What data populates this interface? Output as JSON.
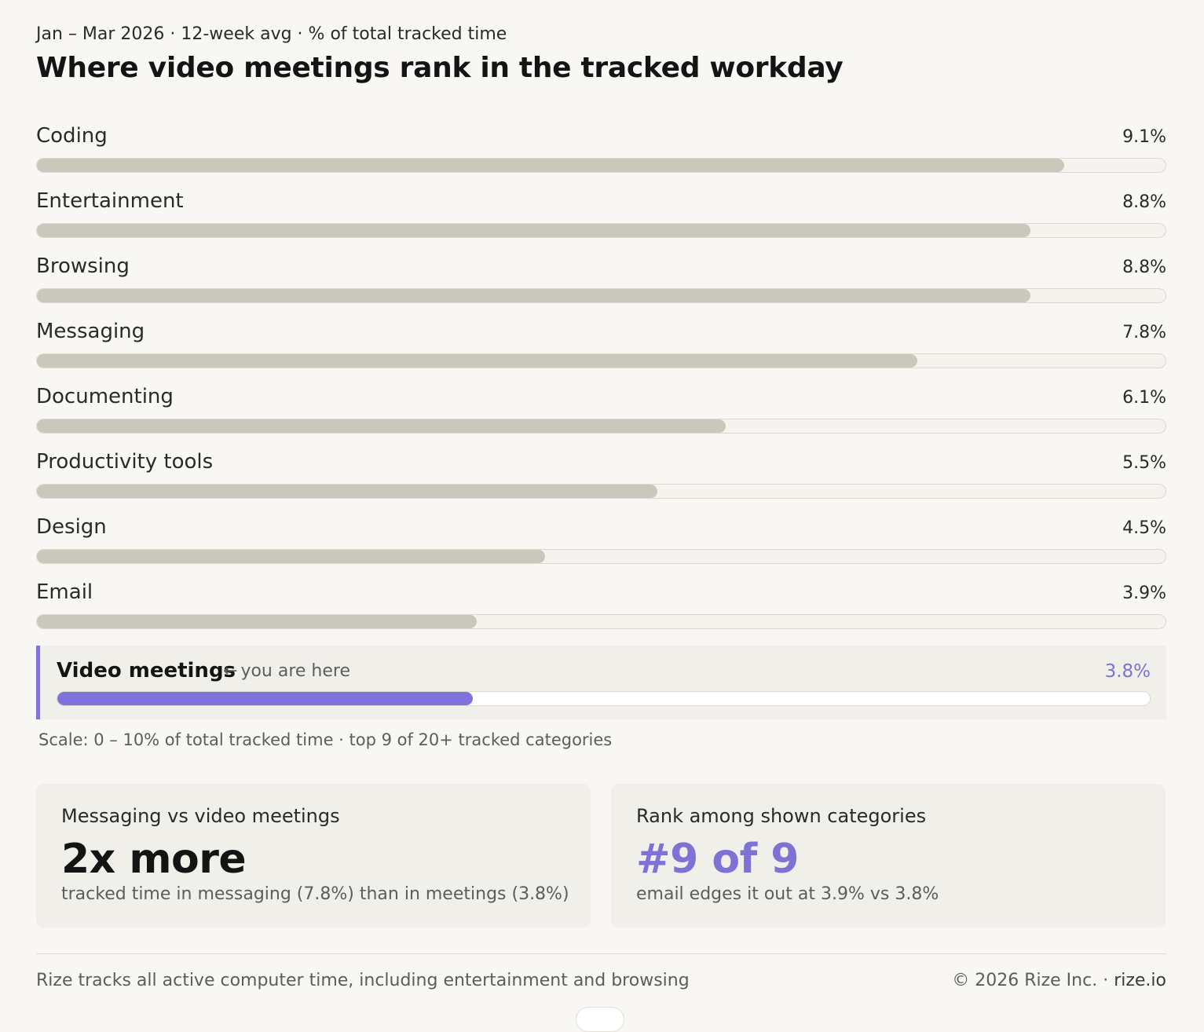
{
  "header": {
    "subtitle": "Jan – Mar 2026 · 12-week avg · % of total tracked time",
    "title": "Where video meetings rank in the tracked workday"
  },
  "chart_data": {
    "type": "bar",
    "orientation": "horizontal",
    "title": "Where video meetings rank in the tracked workday",
    "subtitle": "Jan – Mar 2026 · 12-week avg · % of total tracked time",
    "categories": [
      "Coding",
      "Entertainment",
      "Browsing",
      "Messaging",
      "Documenting",
      "Productivity tools",
      "Design",
      "Email",
      "Video meetings"
    ],
    "values": [
      9.1,
      8.8,
      8.8,
      7.8,
      6.1,
      5.5,
      4.5,
      3.9,
      3.8
    ],
    "value_labels": [
      "9.1%",
      "8.8%",
      "8.8%",
      "7.8%",
      "6.1%",
      "5.5%",
      "4.5%",
      "3.9%",
      "3.8%"
    ],
    "xlim": [
      0,
      10
    ],
    "highlighted_category": "Video meetings",
    "highlight_color": "#7f72dc",
    "bar_color": "#cac7bc",
    "grid": false
  },
  "highlight": {
    "note_arrow": "←",
    "note": "you are here"
  },
  "scale_note": "Scale: 0 – 10% of total tracked time · top 9 of 20+ tracked categories",
  "cards": {
    "left": {
      "label": "Messaging vs video meetings",
      "big": "2x more",
      "sub": "tracked time in messaging (7.8%) than in meetings (3.8%)"
    },
    "right": {
      "label": "Rank among shown categories",
      "big": "#9 of 9",
      "sub": "email edges it out at 3.9% vs 3.8%"
    }
  },
  "footer": {
    "left": "Rize tracks all active computer time, including entertainment and browsing",
    "right_prefix": "© 2026 Rize Inc. · ",
    "right_brand": "rize.io"
  }
}
